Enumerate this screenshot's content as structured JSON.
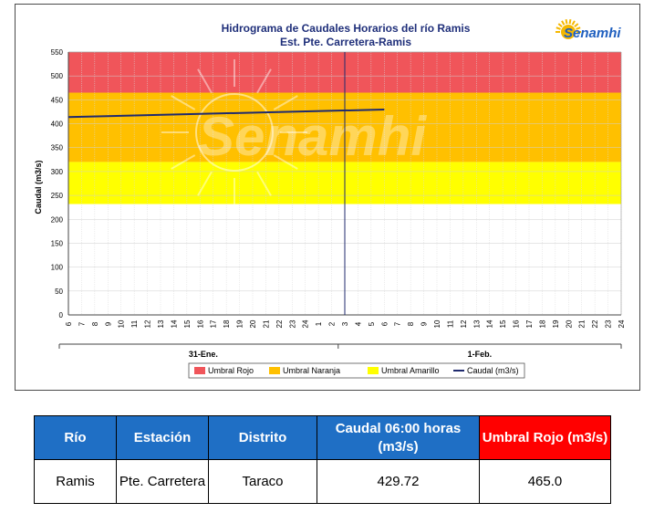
{
  "chart_data": {
    "type": "line",
    "title": "Hidrograma de Caudales Horarios del río Ramis",
    "subtitle": "Est. Pte. Carretera-Ramis",
    "ylabel": "Caudal  (m3/s)",
    "ylim": [
      0,
      550
    ],
    "yticks": [
      0,
      50,
      100,
      150,
      200,
      250,
      300,
      350,
      400,
      450,
      500,
      550
    ],
    "x_hour_labels": [
      "6",
      "7",
      "8",
      "9",
      "10",
      "11",
      "12",
      "13",
      "14",
      "15",
      "16",
      "17",
      "18",
      "19",
      "20",
      "21",
      "22",
      "23",
      "24",
      "1",
      "2",
      "3",
      "4",
      "5",
      "6",
      "7",
      "8",
      "9",
      "10",
      "11",
      "12",
      "13",
      "14",
      "15",
      "16",
      "17",
      "18",
      "19",
      "20",
      "21",
      "22",
      "23",
      "24"
    ],
    "day_labels": [
      "31-Ene.",
      "1-Feb."
    ],
    "thresholds": [
      {
        "name": "Umbral Rojo",
        "from": 465,
        "to": 550,
        "color": "#f0555a"
      },
      {
        "name": "Umbral Naranja",
        "from": 320,
        "to": 465,
        "color": "#ffc000"
      },
      {
        "name": "Umbral Amarillo",
        "from": 232,
        "to": 320,
        "color": "#ffff00"
      }
    ],
    "series": [
      {
        "name": "Caudal (m3/s)",
        "color": "#1f2a6e",
        "x": [
          0,
          24
        ],
        "y": [
          414,
          429.72
        ]
      }
    ],
    "current_time_index": 21,
    "grid": true,
    "legend": "bottom"
  },
  "watermark": "Senamhi",
  "logo": {
    "text": "Senamhi",
    "color": "#1f5fbf",
    "sun_color": "#f5b800"
  },
  "table": {
    "headers": [
      "Río",
      "Estación",
      "Distrito",
      "Caudal 06:00 horas (m3/s)",
      "Umbral Rojo (m3/s)"
    ],
    "row": [
      "Ramis",
      "Pte. Carretera",
      "Taraco",
      "429.72",
      "465.0"
    ]
  }
}
